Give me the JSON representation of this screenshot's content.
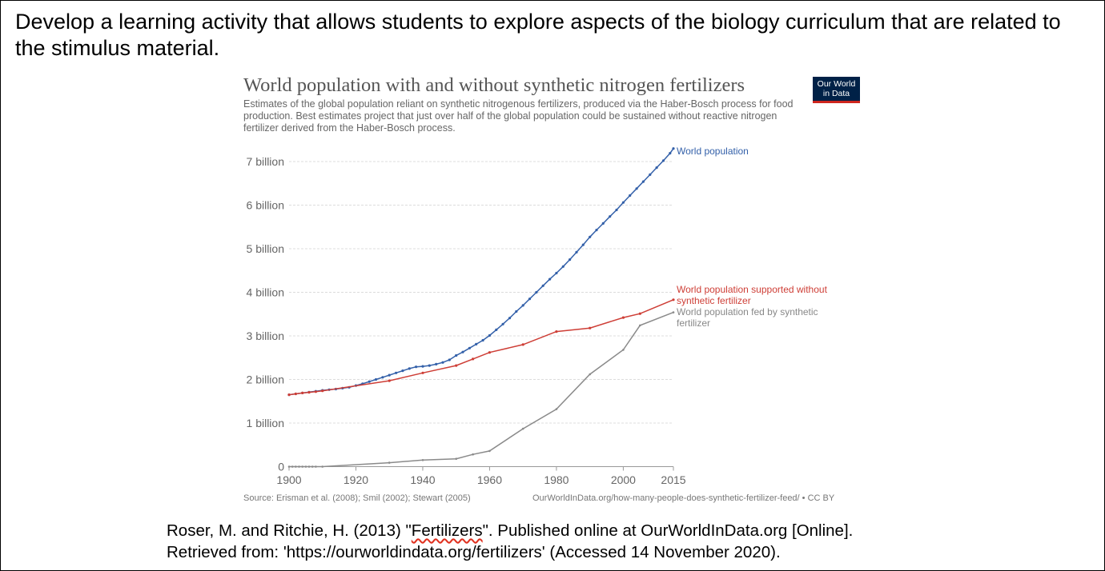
{
  "prompt": "Develop a learning activity that allows students to explore aspects of the biology curriculum that are related to the stimulus material.",
  "logo": {
    "line1": "Our World",
    "line2": "in Data"
  },
  "footer": {
    "source": "Source: Erisman et al. (2008); Smil (2002); Stewart (2005)",
    "url": "OurWorldInData.org/how-many-people-does-synthetic-fertilizer-feed/ • CC BY"
  },
  "citation": {
    "pre": "Roser, M. and Ritchie, H. (2013) \"",
    "word": "Fertilizers",
    "post": "\". Published online at OurWorldInData.org [Online].",
    "line2": "Retrieved from: 'https://ourworldindata.org/fertilizers' (Accessed 14 November 2020)."
  },
  "chart_data": {
    "type": "line",
    "title": "World population with and without synthetic nitrogen fertilizers",
    "subtitle": "Estimates of the global population reliant on synthetic nitrogenous fertilizers, produced via the Haber-Bosch process for food production. Best estimates project that just over half of the global population could be sustained without reactive nitrogen fertilizer derived from the Haber-Bosch process.",
    "xlabel": "",
    "ylabel": "",
    "xlim": [
      1900,
      2015
    ],
    "ylim": [
      0,
      7000000000
    ],
    "x_ticks": [
      1900,
      1920,
      1940,
      1960,
      1980,
      2000,
      2015
    ],
    "y_ticks": [
      {
        "value": 0,
        "label": "0"
      },
      {
        "value": 1000000000,
        "label": "1 billion"
      },
      {
        "value": 2000000000,
        "label": "2 billion"
      },
      {
        "value": 3000000000,
        "label": "3 billion"
      },
      {
        "value": 4000000000,
        "label": "4 billion"
      },
      {
        "value": 5000000000,
        "label": "5 billion"
      },
      {
        "value": 6000000000,
        "label": "6 billion"
      },
      {
        "value": 7000000000,
        "label": "7 billion"
      }
    ],
    "series": [
      {
        "name": "World population",
        "label_lines": [
          "World population"
        ],
        "color": "#3360a9",
        "x": [
          1900,
          1902,
          1904,
          1906,
          1908,
          1910,
          1912,
          1914,
          1916,
          1918,
          1920,
          1922,
          1924,
          1926,
          1928,
          1930,
          1932,
          1934,
          1936,
          1938,
          1940,
          1942,
          1944,
          1946,
          1948,
          1950,
          1952,
          1954,
          1956,
          1958,
          1960,
          1962,
          1964,
          1966,
          1968,
          1970,
          1972,
          1974,
          1976,
          1978,
          1980,
          1982,
          1984,
          1986,
          1988,
          1990,
          1992,
          1994,
          1996,
          1998,
          2000,
          2002,
          2004,
          2006,
          2008,
          2010,
          2012,
          2014,
          2015
        ],
        "values": [
          1650000000,
          1670000000,
          1690000000,
          1710000000,
          1730000000,
          1750000000,
          1765000000,
          1780000000,
          1800000000,
          1820000000,
          1860000000,
          1900000000,
          1950000000,
          2000000000,
          2050000000,
          2100000000,
          2150000000,
          2200000000,
          2250000000,
          2290000000,
          2300000000,
          2320000000,
          2350000000,
          2390000000,
          2450000000,
          2550000000,
          2630000000,
          2720000000,
          2810000000,
          2900000000,
          3010000000,
          3140000000,
          3270000000,
          3410000000,
          3560000000,
          3700000000,
          3850000000,
          4000000000,
          4150000000,
          4300000000,
          4440000000,
          4590000000,
          4750000000,
          4920000000,
          5090000000,
          5270000000,
          5430000000,
          5580000000,
          5740000000,
          5890000000,
          6060000000,
          6220000000,
          6380000000,
          6540000000,
          6700000000,
          6860000000,
          7020000000,
          7190000000,
          7300000000
        ]
      },
      {
        "name": "World population supported without synthetic fertilizer",
        "label_lines": [
          "World population supported without",
          "synthetic fertilizer"
        ],
        "color": "#ce3e36",
        "x": [
          1900,
          1902,
          1904,
          1906,
          1908,
          1910,
          1930,
          1940,
          1950,
          1955,
          1960,
          1970,
          1980,
          1990,
          2000,
          2005,
          2015
        ],
        "values": [
          1650000000,
          1670000000,
          1690000000,
          1705000000,
          1720000000,
          1740000000,
          1970000000,
          2150000000,
          2320000000,
          2470000000,
          2620000000,
          2800000000,
          3100000000,
          3180000000,
          3420000000,
          3510000000,
          3830000000
        ]
      },
      {
        "name": "World population fed by synthetic fertilizer",
        "label_lines": [
          "World population fed by synthetic",
          "fertilizer"
        ],
        "color": "#8a8a8a",
        "x": [
          1900,
          1901,
          1902,
          1903,
          1904,
          1905,
          1906,
          1907,
          1908,
          1910,
          1930,
          1940,
          1950,
          1955,
          1960,
          1970,
          1980,
          1990,
          2000,
          2005,
          2015
        ],
        "values": [
          0,
          0,
          0,
          0,
          0,
          0,
          0,
          0,
          0,
          0,
          90000000,
          150000000,
          180000000,
          280000000,
          360000000,
          870000000,
          1320000000,
          2120000000,
          2680000000,
          3240000000,
          3540000000
        ]
      }
    ]
  }
}
